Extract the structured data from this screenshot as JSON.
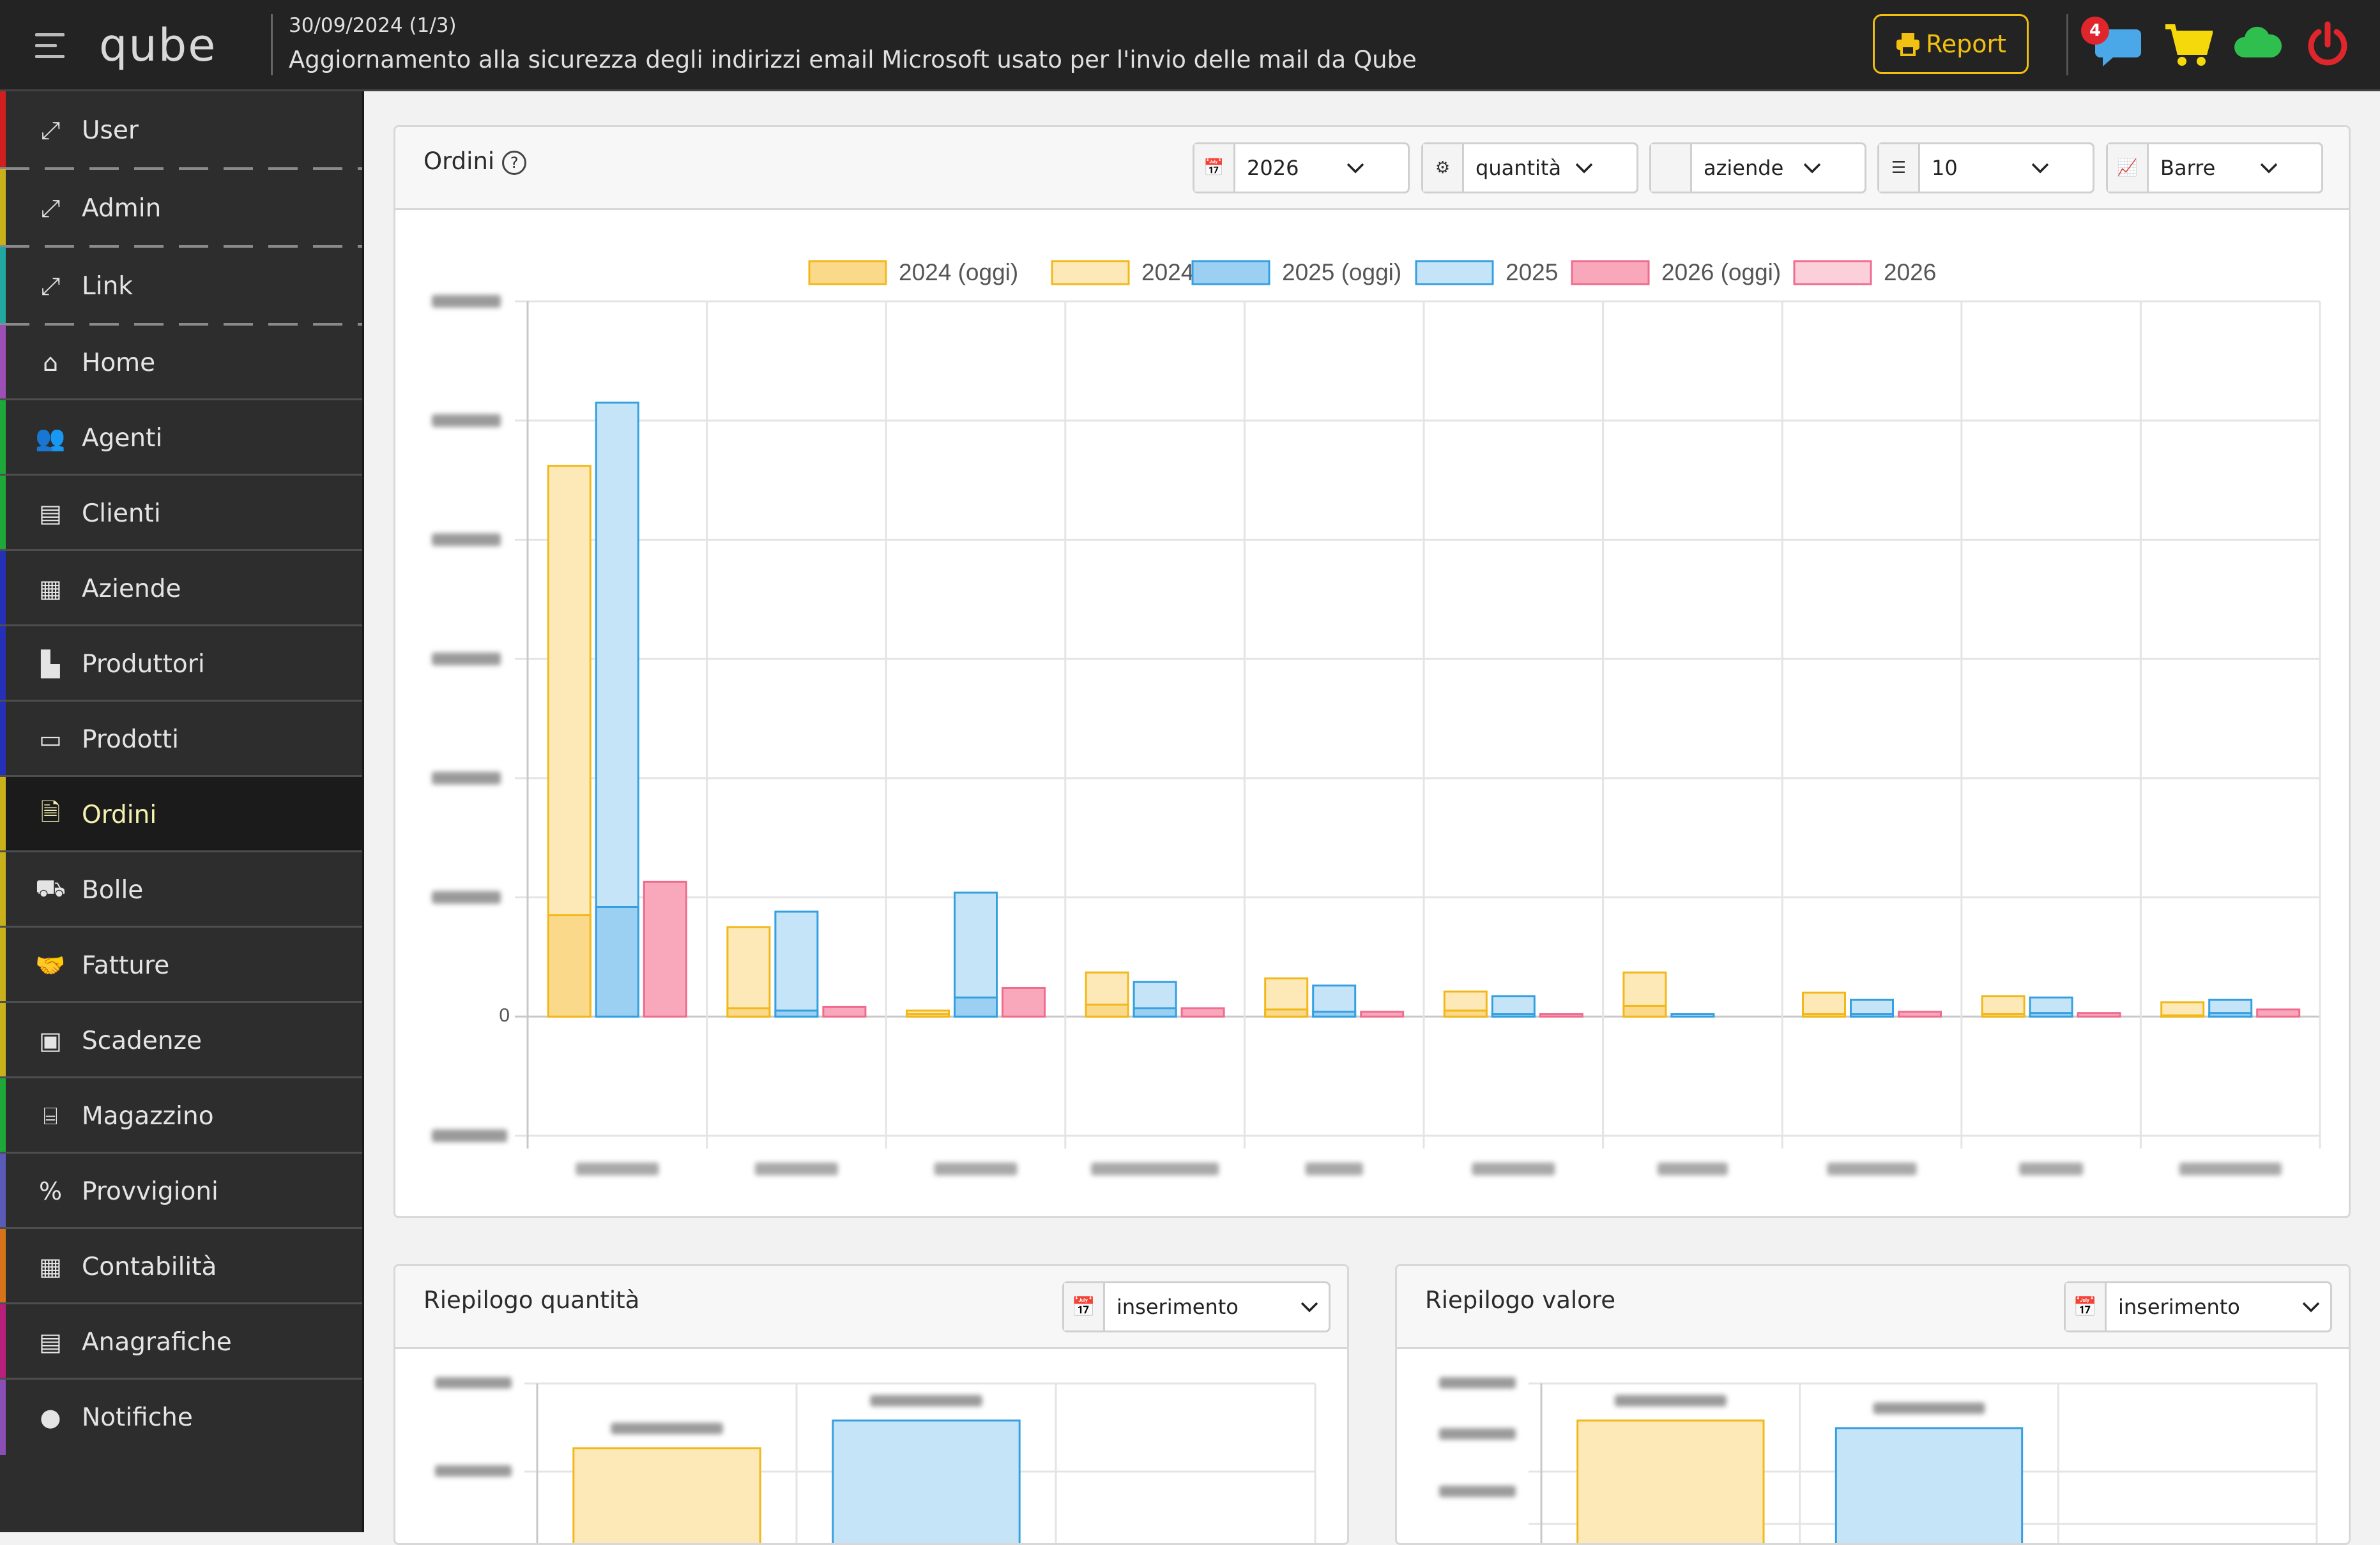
{
  "header": {
    "logo": "qube",
    "news_date": "30/09/2024 (1/3)",
    "news_text": "Aggiornamento alla sicurezza degli indirizzi email Microsoft usato per l'invio delle mail da Qube",
    "report_label": "Report",
    "messages_badge": "4",
    "icons": [
      "menu-icon",
      "printer-icon",
      "chat-icon",
      "cart-icon",
      "cloud-icon",
      "power-icon"
    ],
    "colors": {
      "report": "#f2c011",
      "chat": "#4aa8e8",
      "cart": "#f5d90a",
      "cloud": "#2fbf4f",
      "power": "#e0262d"
    }
  },
  "sidebar": {
    "items": [
      {
        "label": "User",
        "icon": "expand-icon",
        "color": "#d11f1f"
      },
      {
        "label": "Admin",
        "icon": "expand-icon",
        "color": "#c8b11a"
      },
      {
        "label": "Link",
        "icon": "expand-icon",
        "color": "#1fa9a0"
      },
      {
        "label": "Home",
        "icon": "home-icon",
        "color": "#9c4fb5"
      },
      {
        "label": "Agenti",
        "icon": "users-icon",
        "color": "#1fa83a"
      },
      {
        "label": "Clienti",
        "icon": "id-card-icon",
        "color": "#1fa83a"
      },
      {
        "label": "Aziende",
        "icon": "building-icon",
        "color": "#2430b8"
      },
      {
        "label": "Produttori",
        "icon": "factory-icon",
        "color": "#2430b8"
      },
      {
        "label": "Prodotti",
        "icon": "archive-icon",
        "color": "#2430b8"
      },
      {
        "label": "Ordini",
        "icon": "document-icon",
        "color": "#c8b11a",
        "active": true
      },
      {
        "label": "Bolle",
        "icon": "truck-icon",
        "color": "#c8b11a"
      },
      {
        "label": "Fatture",
        "icon": "handshake-icon",
        "color": "#c8b11a"
      },
      {
        "label": "Scadenze",
        "icon": "money-icon",
        "color": "#c8b11a"
      },
      {
        "label": "Magazzino",
        "icon": "warehouse-icon",
        "color": "#1fa83a"
      },
      {
        "label": "Provvigioni",
        "icon": "percent-icon",
        "color": "#5a5ab8"
      },
      {
        "label": "Contabilità",
        "icon": "calculator-icon",
        "color": "#d6731a"
      },
      {
        "label": "Anagrafiche",
        "icon": "book-icon",
        "color": "#b81f7a"
      },
      {
        "label": "Notifiche",
        "icon": "comment-icon",
        "color": "#8a4fb5"
      }
    ]
  },
  "orders_card": {
    "title": "Ordini",
    "help_icon": "question-icon",
    "filters": [
      {
        "icon": "calendar-icon",
        "value": "2026"
      },
      {
        "icon": "gear-icon",
        "value": "quantità"
      },
      {
        "icon": "code-icon",
        "value": "aziende"
      },
      {
        "icon": "list-icon",
        "value": "10"
      },
      {
        "icon": "chart-line-icon",
        "value": "Barre"
      }
    ]
  },
  "chart_data": {
    "type": "bar",
    "legend_position": "top",
    "grid": true,
    "y_tick_labels": [
      "0"
    ],
    "categories": [
      "",
      "",
      "",
      "",
      "",
      "",
      "",
      "",
      "",
      ""
    ],
    "series": [
      {
        "name": "2024 (oggi)",
        "stack": "2024",
        "color": "#fbd98a",
        "values": [
          850,
          70,
          20,
          100,
          60,
          50,
          90,
          20,
          20,
          10
        ]
      },
      {
        "name": "2024",
        "stack": "2024",
        "color": "#fde8b8",
        "values": [
          4620,
          750,
          50,
          370,
          320,
          210,
          370,
          200,
          170,
          120
        ]
      },
      {
        "name": "2025 (oggi)",
        "stack": "2025",
        "color": "#9bd0f3",
        "values": [
          920,
          50,
          160,
          70,
          40,
          20,
          0,
          20,
          30,
          30
        ]
      },
      {
        "name": "2025",
        "stack": "2025",
        "color": "#c6e4f8",
        "values": [
          5150,
          880,
          1040,
          290,
          260,
          170,
          20,
          140,
          160,
          140
        ]
      },
      {
        "name": "2026 (oggi)",
        "stack": "2026",
        "color": "#f9a8bb",
        "values": [
          1130,
          80,
          240,
          70,
          40,
          20,
          0,
          40,
          30,
          60
        ]
      },
      {
        "name": "2026",
        "stack": "2026",
        "color": "#fcd0da",
        "values": [
          1130,
          80,
          240,
          70,
          40,
          20,
          0,
          40,
          30,
          60
        ]
      }
    ],
    "ylim": [
      -1000,
      6000
    ],
    "title": "",
    "xlabel": "",
    "ylabel": ""
  },
  "qty_card": {
    "title": "Riepilogo quantità",
    "filter": {
      "icon": "calendar-icon",
      "value": "inserimento"
    },
    "chart_data": {
      "type": "bar",
      "categories": [
        "",
        "",
        ""
      ],
      "series": [
        {
          "name": "",
          "values": [
            78,
            100,
            0
          ]
        }
      ],
      "colors": [
        "#fde8b8",
        "#c6e4f8"
      ],
      "ylim": [
        0,
        100
      ]
    }
  },
  "value_card": {
    "title": "Riepilogo valore",
    "filter": {
      "icon": "calendar-icon",
      "value": "inserimento"
    },
    "chart_data": {
      "type": "bar",
      "categories": [
        "",
        "",
        ""
      ],
      "series": [
        {
          "name": "",
          "values": [
            100,
            94,
            0
          ]
        }
      ],
      "colors": [
        "#fde8b8",
        "#c6e4f8"
      ],
      "ylim": [
        0,
        100
      ]
    }
  }
}
